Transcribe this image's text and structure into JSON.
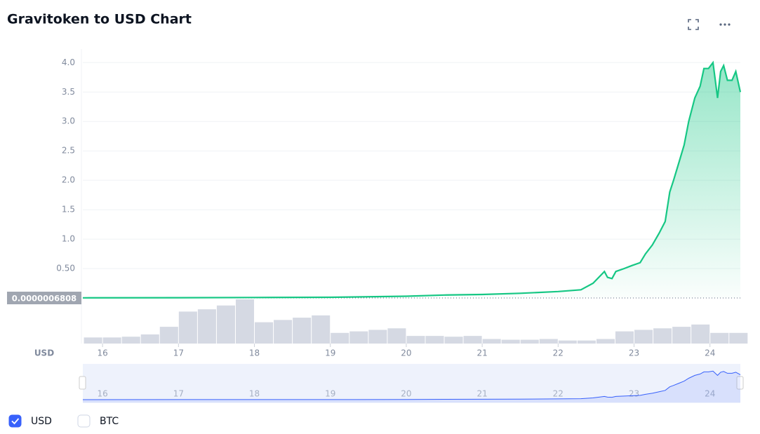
{
  "chart_data": {
    "type": "line",
    "title": "Gravitoken to USD Chart",
    "y_axis_label": "USD",
    "series": [
      {
        "name": "USD",
        "color": "#16c784",
        "x": [
          15.74,
          17,
          18,
          19,
          20,
          20.5,
          21,
          21.5,
          22,
          22.3,
          22.46,
          22.61,
          22.65,
          22.71,
          22.76,
          22.87,
          22.97,
          23.08,
          23.15,
          23.24,
          23.33,
          23.41,
          23.47,
          23.52,
          23.59,
          23.66,
          23.72,
          23.8,
          23.87,
          23.92,
          23.98,
          24.04,
          24.07,
          24.1,
          24.14,
          24.18,
          24.23,
          24.29,
          24.34,
          24.4
        ],
        "values": [
          0.002,
          0.005,
          0.008,
          0.012,
          0.03,
          0.05,
          0.06,
          0.08,
          0.11,
          0.14,
          0.25,
          0.45,
          0.35,
          0.33,
          0.45,
          0.5,
          0.55,
          0.6,
          0.75,
          0.9,
          1.1,
          1.3,
          1.8,
          2.0,
          2.3,
          2.6,
          3.0,
          3.4,
          3.6,
          3.9,
          3.9,
          4.0,
          3.7,
          3.4,
          3.85,
          3.95,
          3.7,
          3.7,
          3.85,
          3.5
        ]
      }
    ],
    "volume": {
      "color": "#d5d9e3",
      "x": [
        15.75,
        16,
        16.25,
        16.5,
        16.75,
        17,
        17.25,
        17.5,
        17.75,
        18,
        18.25,
        18.5,
        18.75,
        19,
        19.25,
        19.5,
        19.75,
        20,
        20.25,
        20.5,
        20.75,
        21,
        21.25,
        21.5,
        21.75,
        22,
        22.25,
        22.5,
        22.75,
        23,
        23.25,
        23.5,
        23.75,
        24,
        24.25
      ],
      "values": [
        8,
        8,
        9,
        12,
        22,
        42,
        45,
        50,
        58,
        28,
        31,
        34,
        37,
        14,
        16,
        18,
        20,
        10,
        10,
        9,
        10,
        6,
        5,
        5,
        6,
        4,
        4,
        6,
        16,
        18,
        20,
        22,
        25,
        14,
        14
      ]
    },
    "xlim": [
      15.74,
      24.4
    ],
    "xticks": [
      16,
      17,
      18,
      19,
      20,
      21,
      22,
      23,
      24
    ],
    "ylim": [
      0,
      4.23
    ],
    "yticks": [
      {
        "value": 0.5,
        "label": "0.50"
      },
      {
        "value": 1,
        "label": "1.0"
      },
      1.5,
      {
        "value": 2,
        "label": "2.0"
      },
      2.5,
      {
        "value": 3,
        "label": "3.0"
      },
      3.5,
      {
        "value": 4,
        "label": "4.0"
      }
    ],
    "price_tag": {
      "value": 6.808e-07,
      "label": "0.0000006808"
    },
    "grid": true,
    "legend": [
      {
        "name": "USD",
        "checked": true
      },
      {
        "name": "BTC",
        "checked": false
      }
    ]
  }
}
